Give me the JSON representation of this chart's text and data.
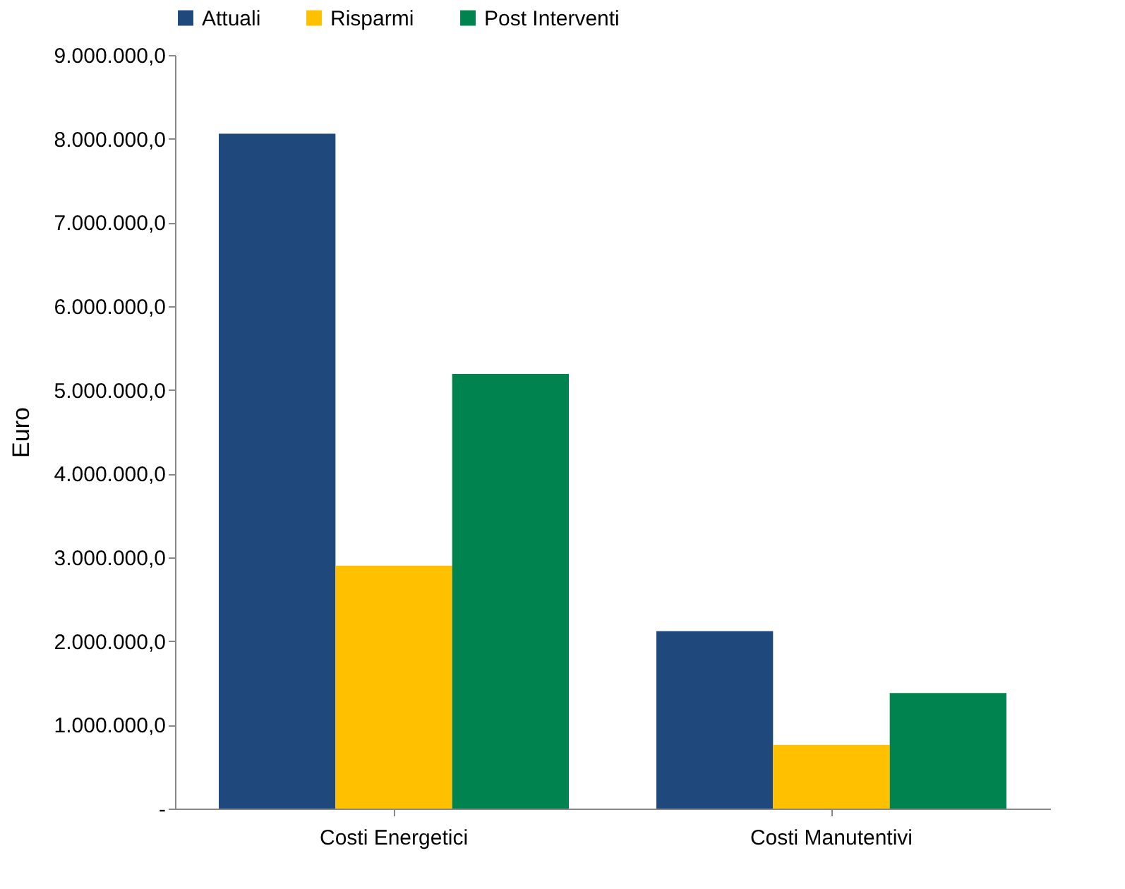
{
  "chart_data": {
    "type": "bar",
    "ylabel": "Euro",
    "categories": [
      "Costi Energetici",
      "Costi Manutentivi"
    ],
    "series": [
      {
        "name": "Attuali",
        "color": "#1f497d",
        "values": [
          8060000,
          2120000
        ]
      },
      {
        "name": "Risparmi",
        "color": "#ffc000",
        "values": [
          2900000,
          760000
        ]
      },
      {
        "name": "Post Interventi",
        "color": "#00834e",
        "values": [
          5190000,
          1380000
        ]
      }
    ],
    "ylim": [
      0,
      9000000
    ],
    "yticks": [
      {
        "value": 0,
        "label": "-"
      },
      {
        "value": 1000000,
        "label": "1.000.000,0"
      },
      {
        "value": 2000000,
        "label": "2.000.000,0"
      },
      {
        "value": 3000000,
        "label": "3.000.000,0"
      },
      {
        "value": 4000000,
        "label": "4.000.000,0"
      },
      {
        "value": 5000000,
        "label": "5.000.000,0"
      },
      {
        "value": 6000000,
        "label": "6.000.000,0"
      },
      {
        "value": 7000000,
        "label": "7.000.000,0"
      },
      {
        "value": 8000000,
        "label": "8.000.000,0"
      },
      {
        "value": 9000000,
        "label": "9.000.000,0"
      }
    ],
    "grid": false,
    "legend": "top"
  }
}
